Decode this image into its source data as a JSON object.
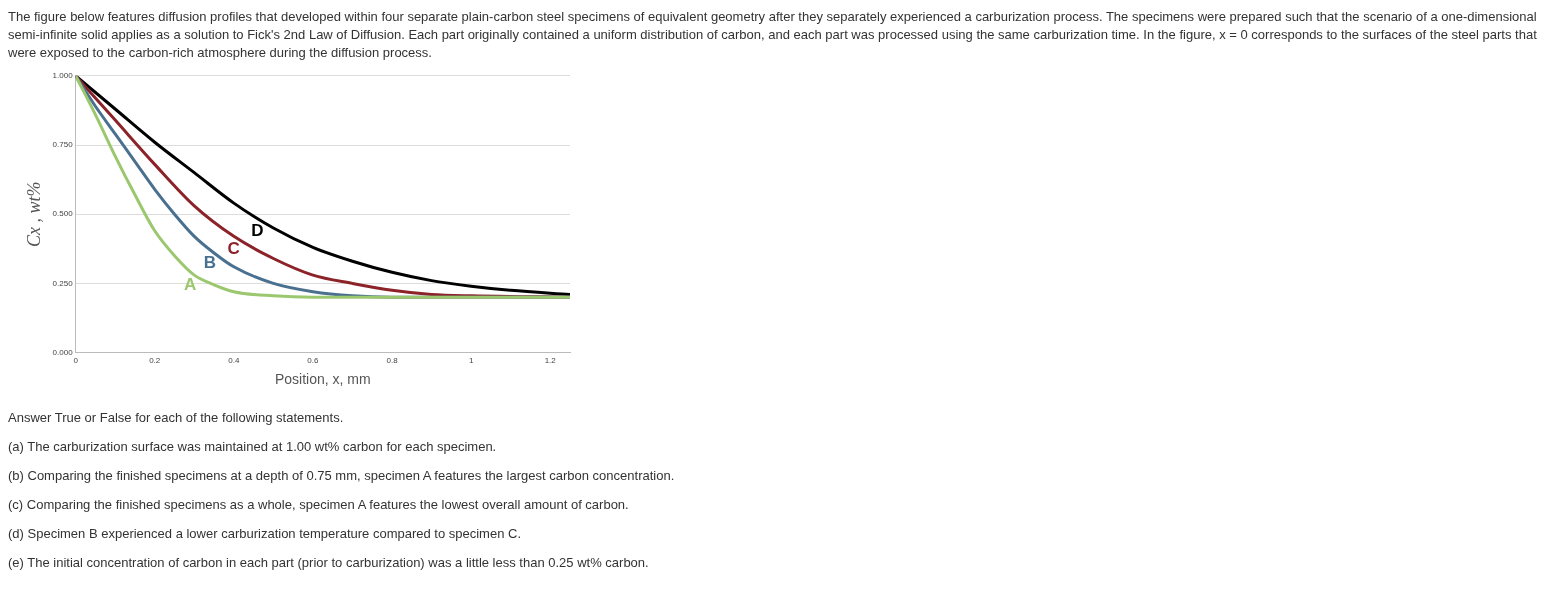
{
  "chart_data": {
    "type": "line",
    "title": "The figure below features diffusion profiles that developed within four separate plain-carbon steel specimens of equivalent geometry after they separately experienced a carburization process. The specimens were prepared such that the scenario of a one-dimensional semi-infinite solid applies as a solution to Fick's 2nd Law of Diffusion. Each part originally contained a uniform distribution of carbon, and each part was processed using the same carburization time. In the figure, x = 0 corresponds to the surfaces of the steel parts that were exposed to the carbon-rich atmosphere during the diffusion process.",
    "xlabel": "Position, x, mm",
    "ylabel": "Cx , wt%",
    "xlim": [
      0,
      1.25
    ],
    "xticks": [
      0,
      0.2,
      0.4,
      0.6,
      0.8,
      1,
      1.2
    ],
    "ylim": [
      0,
      1
    ],
    "yticks": [
      {
        "value": 0,
        "label": "0.000"
      },
      {
        "value": 0.25,
        "label": "0.250"
      },
      {
        "value": 0.5,
        "label": "0.500"
      },
      {
        "value": 0.75,
        "label": "0.750"
      },
      {
        "value": 1,
        "label": "1.000"
      }
    ],
    "grid": "y",
    "legend": false,
    "series": [
      {
        "name": "A",
        "color": "#9bc86e",
        "x": [
          0,
          0.05,
          0.1,
          0.15,
          0.2,
          0.25,
          0.3,
          0.35,
          0.4,
          0.5,
          0.6,
          0.8,
          1.0,
          1.25
        ],
        "values": [
          1.0,
          0.86,
          0.71,
          0.57,
          0.44,
          0.35,
          0.28,
          0.245,
          0.22,
          0.205,
          0.2,
          0.2,
          0.2,
          0.2
        ]
      },
      {
        "name": "B",
        "color": "#4a7090",
        "x": [
          0,
          0.05,
          0.1,
          0.15,
          0.2,
          0.25,
          0.3,
          0.35,
          0.4,
          0.5,
          0.6,
          0.7,
          0.8,
          1.0,
          1.25
        ],
        "values": [
          1.0,
          0.89,
          0.79,
          0.69,
          0.59,
          0.5,
          0.42,
          0.36,
          0.31,
          0.25,
          0.22,
          0.205,
          0.2,
          0.2,
          0.2
        ]
      },
      {
        "name": "C",
        "color": "#8b2328",
        "x": [
          0,
          0.1,
          0.2,
          0.3,
          0.4,
          0.5,
          0.6,
          0.7,
          0.8,
          0.9,
          1.0,
          1.25
        ],
        "values": [
          1.0,
          0.84,
          0.68,
          0.53,
          0.42,
          0.34,
          0.28,
          0.25,
          0.225,
          0.21,
          0.205,
          0.2
        ]
      },
      {
        "name": "D",
        "color": "#000000",
        "x": [
          0,
          0.1,
          0.2,
          0.3,
          0.4,
          0.5,
          0.6,
          0.7,
          0.8,
          0.9,
          1.0,
          1.1,
          1.25
        ],
        "values": [
          1.0,
          0.88,
          0.76,
          0.65,
          0.54,
          0.45,
          0.38,
          0.33,
          0.29,
          0.26,
          0.24,
          0.225,
          0.21
        ]
      }
    ],
    "annotations": [
      "Answer True or False for each of the following statements.",
      "(a) The carburization surface was maintained at 1.00 wt% carbon for each specimen.",
      "(b) Comparing the finished specimens at a depth of 0.75 mm, specimen A features the largest carbon concentration.",
      "(c) Comparing the finished specimens as a whole, specimen A features the lowest overall amount of carbon.",
      "(d) Specimen B experienced a lower carburization temperature compared to specimen C.",
      "(e) The initial concentration of carbon in each part (prior to carburization) was a little less than 0.25 wt% carbon."
    ]
  }
}
